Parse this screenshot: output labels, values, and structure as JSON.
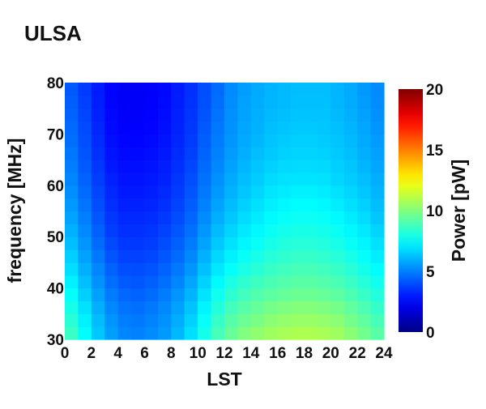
{
  "chart_data": {
    "type": "heatmap",
    "title": "ULSA",
    "xlabel": "LST",
    "ylabel": "frequency [MHz]",
    "colorbar_label": "Power [pW]",
    "colormap": "jet",
    "xlim": [
      0,
      24
    ],
    "ylim": [
      30,
      80
    ],
    "x_ticks": [
      "0",
      "2",
      "4",
      "6",
      "8",
      "10",
      "12",
      "14",
      "16",
      "18",
      "20",
      "22",
      "24"
    ],
    "y_ticks": [
      "30",
      "40",
      "50",
      "60",
      "70",
      "80"
    ],
    "colorbar_ticks": [
      "0",
      "5",
      "10",
      "15",
      "20"
    ],
    "clim": [
      0,
      20
    ],
    "x": [
      0.5,
      1.5,
      2.5,
      3.5,
      4.5,
      5.5,
      6.5,
      7.5,
      8.5,
      9.5,
      10.5,
      11.5,
      12.5,
      13.5,
      14.5,
      15.5,
      16.5,
      17.5,
      18.5,
      19.5,
      20.5,
      21.5,
      22.5,
      23.5
    ],
    "y": [
      80,
      75,
      70,
      65,
      60,
      55,
      50,
      45,
      40,
      35,
      30
    ],
    "z": [
      [
        4.2,
        3.6,
        3.0,
        2.5,
        2.3,
        2.3,
        2.4,
        2.6,
        3.0,
        3.4,
        4.0,
        4.6,
        5.2,
        5.6,
        5.8,
        6.0,
        6.1,
        6.2,
        6.2,
        6.2,
        6.0,
        5.8,
        5.5,
        5.2
      ],
      [
        4.4,
        3.8,
        3.1,
        2.6,
        2.4,
        2.4,
        2.5,
        2.7,
        3.1,
        3.5,
        4.1,
        4.7,
        5.3,
        5.7,
        5.9,
        6.1,
        6.2,
        6.3,
        6.3,
        6.3,
        6.1,
        5.9,
        5.6,
        5.3
      ],
      [
        4.6,
        4.0,
        3.3,
        2.7,
        2.5,
        2.5,
        2.6,
        2.8,
        3.2,
        3.6,
        4.3,
        4.9,
        5.4,
        5.8,
        6.0,
        6.3,
        6.4,
        6.5,
        6.5,
        6.4,
        6.3,
        6.1,
        5.8,
        5.5
      ],
      [
        4.9,
        4.2,
        3.5,
        2.9,
        2.7,
        2.7,
        2.8,
        3.0,
        3.4,
        3.8,
        4.5,
        5.1,
        5.6,
        6.0,
        6.3,
        6.5,
        6.7,
        6.7,
        6.7,
        6.7,
        6.5,
        6.3,
        6.0,
        5.7
      ],
      [
        5.2,
        4.5,
        3.8,
        3.2,
        2.9,
        2.9,
        3.0,
        3.2,
        3.6,
        4.1,
        4.8,
        5.4,
        5.9,
        6.3,
        6.6,
        6.9,
        7.0,
        7.1,
        7.1,
        7.0,
        6.8,
        6.6,
        6.3,
        6.0
      ],
      [
        5.6,
        4.9,
        4.1,
        3.5,
        3.2,
        3.2,
        3.3,
        3.5,
        3.9,
        4.4,
        5.1,
        5.8,
        6.3,
        6.7,
        7.0,
        7.3,
        7.5,
        7.6,
        7.6,
        7.5,
        7.3,
        7.0,
        6.7,
        6.3
      ],
      [
        6.1,
        5.3,
        4.5,
        3.8,
        3.5,
        3.5,
        3.6,
        3.9,
        4.3,
        4.8,
        5.6,
        6.3,
        6.8,
        7.2,
        7.5,
        7.8,
        8.0,
        8.1,
        8.1,
        8.0,
        7.8,
        7.5,
        7.2,
        6.8
      ],
      [
        6.7,
        5.8,
        5.0,
        4.3,
        3.9,
        3.9,
        4.0,
        4.3,
        4.7,
        5.3,
        6.1,
        6.9,
        7.4,
        7.8,
        8.1,
        8.4,
        8.6,
        8.7,
        8.7,
        8.6,
        8.4,
        8.1,
        7.7,
        7.3
      ],
      [
        7.4,
        6.4,
        5.5,
        4.8,
        4.4,
        4.3,
        4.5,
        4.8,
        5.3,
        5.9,
        6.8,
        7.6,
        8.2,
        8.6,
        8.9,
        9.1,
        9.3,
        9.4,
        9.4,
        9.3,
        9.1,
        8.8,
        8.4,
        8.0
      ],
      [
        8.1,
        7.1,
        6.1,
        5.3,
        4.9,
        4.8,
        5.0,
        5.3,
        5.8,
        6.5,
        7.5,
        8.4,
        9.0,
        9.4,
        9.7,
        10.0,
        10.2,
        10.3,
        10.3,
        10.2,
        10.0,
        9.6,
        9.2,
        8.7
      ],
      [
        8.8,
        7.6,
        6.5,
        5.7,
        5.2,
        5.1,
        5.3,
        5.6,
        6.2,
        7.0,
        8.0,
        9.0,
        9.7,
        10.2,
        10.5,
        10.8,
        11.0,
        11.1,
        11.1,
        11.0,
        10.8,
        10.4,
        9.9,
        9.4
      ]
    ]
  }
}
